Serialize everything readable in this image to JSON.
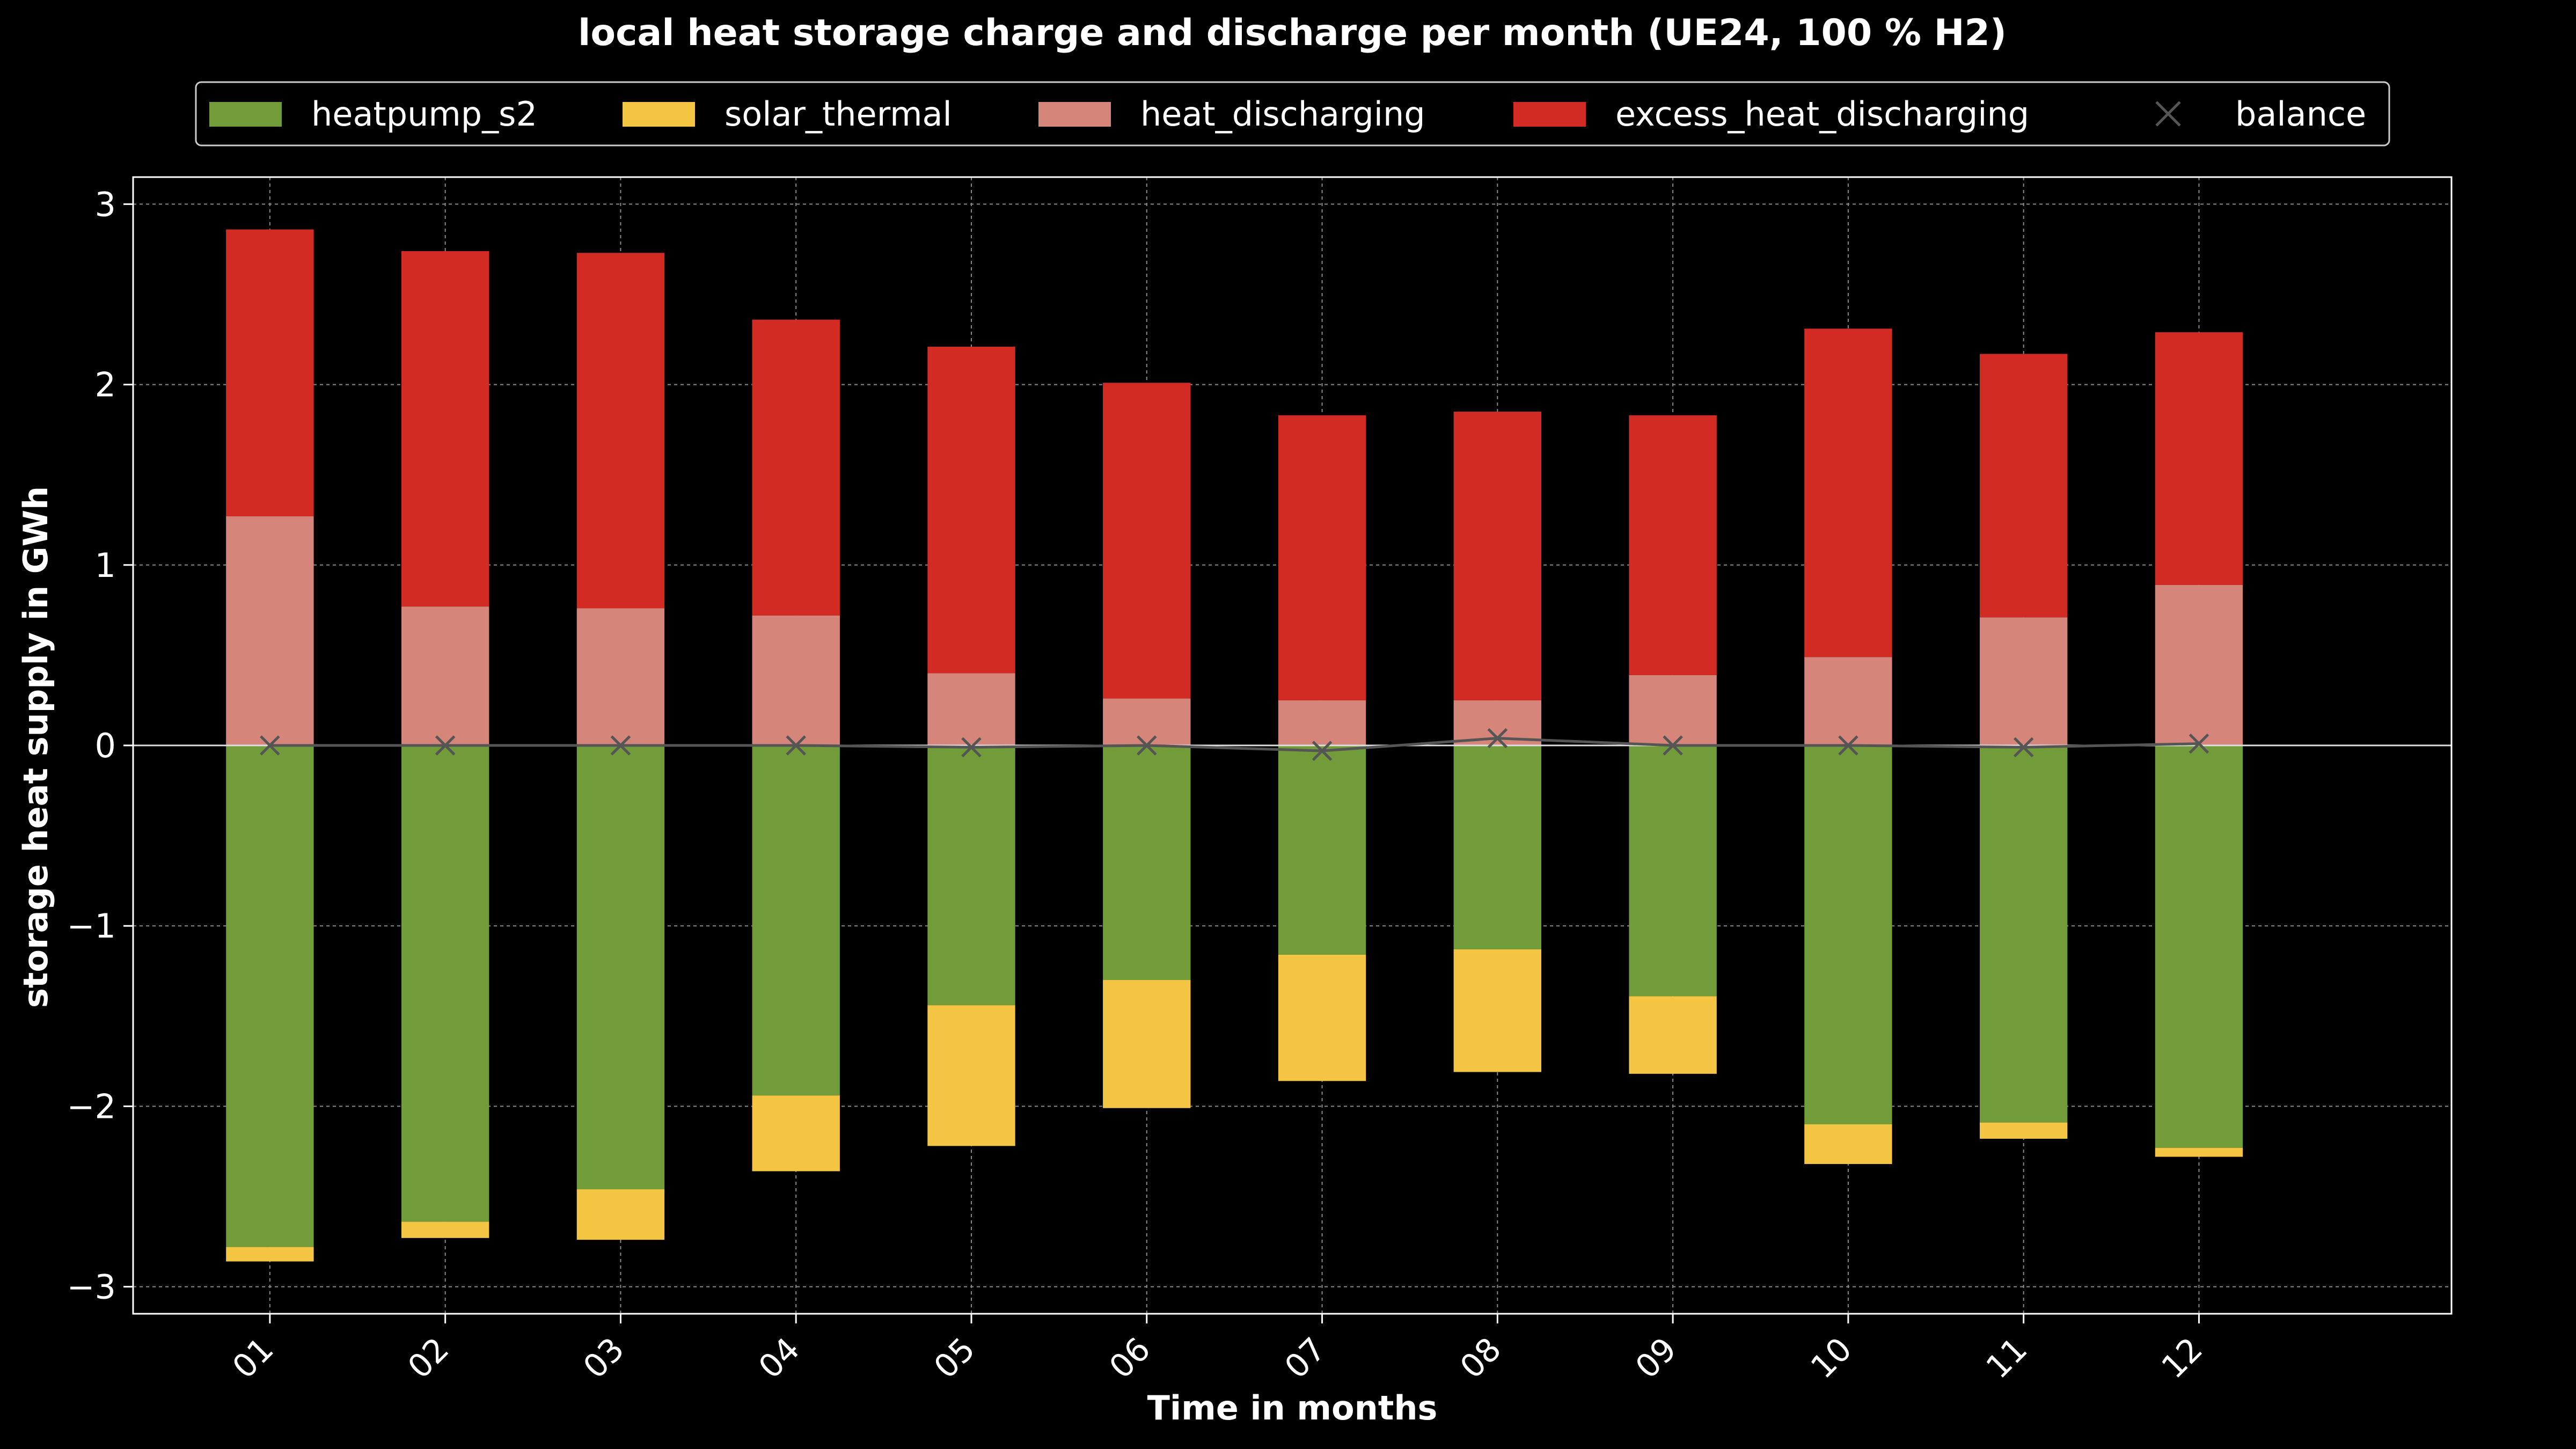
{
  "colors": {
    "background": "#000000",
    "axes_frame": "#ffffff",
    "grid": "#8a8a8a",
    "heatpump_s2": "#729b3a",
    "solar_thermal": "#f4c542",
    "heat_discharging": "#d6857b",
    "excess_heat_discharging": "#d22b24",
    "balance": "#555555"
  },
  "chart_data": {
    "type": "bar",
    "stacked": true,
    "title": "local heat storage charge and discharge per month (UE24, 100 % H2)",
    "xlabel": "Time in months",
    "ylabel": "storage heat supply in GWh",
    "categories": [
      "01",
      "02",
      "03",
      "04",
      "05",
      "06",
      "07",
      "08",
      "09",
      "10",
      "11",
      "12"
    ],
    "yticks": [
      3,
      2,
      1,
      0,
      -1,
      -2,
      -3
    ],
    "ytick_labels": [
      "3",
      "2",
      "1",
      "0",
      "−1",
      "−2",
      "−3"
    ],
    "ylim": [
      -3.15,
      3.15
    ],
    "grid": true,
    "legend_position": "top-center",
    "legend": [
      "heatpump_s2",
      "solar_thermal",
      "heat_discharging",
      "excess_heat_discharging",
      "balance"
    ],
    "series": [
      {
        "name": "heatpump_s2",
        "kind": "bar",
        "values": [
          -2.78,
          -2.64,
          -2.46,
          -1.94,
          -1.44,
          -1.3,
          -1.16,
          -1.13,
          -1.39,
          -2.1,
          -2.09,
          -2.23
        ]
      },
      {
        "name": "solar_thermal",
        "kind": "bar",
        "values": [
          -0.08,
          -0.09,
          -0.28,
          -0.42,
          -0.78,
          -0.71,
          -0.7,
          -0.68,
          -0.43,
          -0.22,
          -0.09,
          -0.05
        ]
      },
      {
        "name": "heat_discharging",
        "kind": "bar",
        "values": [
          1.27,
          0.77,
          0.76,
          0.72,
          0.4,
          0.26,
          0.25,
          0.25,
          0.39,
          0.49,
          0.71,
          0.89
        ]
      },
      {
        "name": "excess_heat_discharging",
        "kind": "bar",
        "values": [
          1.59,
          1.97,
          1.97,
          1.64,
          1.81,
          1.75,
          1.58,
          1.6,
          1.44,
          1.82,
          1.46,
          1.4
        ]
      },
      {
        "name": "balance",
        "kind": "line-marker",
        "values": [
          0.0,
          0.0,
          0.0,
          0.0,
          -0.01,
          0.0,
          -0.03,
          0.04,
          0.0,
          0.0,
          -0.01,
          0.01
        ]
      }
    ]
  }
}
